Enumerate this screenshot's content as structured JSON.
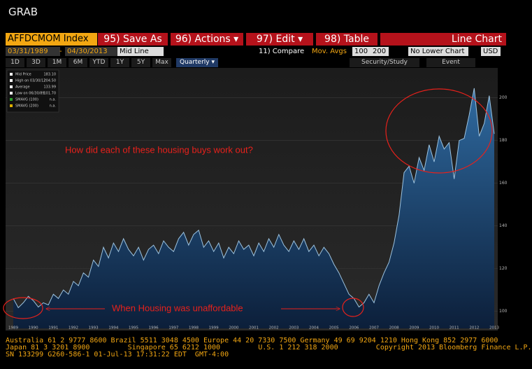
{
  "window": {
    "title": "GRAB"
  },
  "toolbar": {
    "security": "AFFDCMOM Index",
    "menus": [
      "95) Save As",
      "96) Actions ▾",
      "97) Edit ▾",
      "98) Table"
    ],
    "chart_type": "Line Chart",
    "start_date": "03/31/1989",
    "end_date": "04/30/2013",
    "field": "Mid Line",
    "compare": "11) Compare",
    "mov_avgs": "Mov. Avgs",
    "ma_1": "100",
    "ma_2": "200",
    "lower_chart": "No Lower Chart",
    "currency": "USD",
    "periods": [
      "1D",
      "3D",
      "1M",
      "6M",
      "YTD",
      "1Y",
      "5Y",
      "Max"
    ],
    "frequency": "Quarterly ▾",
    "security_study": "Security/Study",
    "event": "Event"
  },
  "legend": [
    {
      "label": "Mid Price",
      "value": "183.10"
    },
    {
      "label": "High on 03/30/12",
      "value": "204.50"
    },
    {
      "label": "Average",
      "value": "133.99"
    },
    {
      "label": "Low on 06/30/89",
      "value": "101.70"
    },
    {
      "label": "SMAVG (100)",
      "value": "n.a."
    },
    {
      "label": "SMAVG (200)",
      "value": "n.a."
    }
  ],
  "chart_data": {
    "type": "area",
    "annotations": [
      "How did each of these housing buys work out?",
      "When Housing was unaffordable"
    ],
    "categories": [
      "1989",
      null,
      null,
      null,
      "1990",
      null,
      null,
      null,
      "1991",
      null,
      null,
      null,
      "1992",
      null,
      null,
      null,
      "1993",
      null,
      null,
      null,
      "1994",
      null,
      null,
      null,
      "1995",
      null,
      null,
      null,
      "1996",
      null,
      null,
      null,
      "1997",
      null,
      null,
      null,
      "1998",
      null,
      null,
      null,
      "1999",
      null,
      null,
      null,
      "2000",
      null,
      null,
      null,
      "2001",
      null,
      null,
      null,
      "2002",
      null,
      null,
      null,
      "2003",
      null,
      null,
      null,
      "2004",
      null,
      null,
      null,
      "2005",
      null,
      null,
      null,
      "2006",
      null,
      null,
      null,
      "2007",
      null,
      null,
      null,
      "2008",
      null,
      null,
      null,
      "2009",
      null,
      null,
      null,
      "2010",
      null,
      null,
      null,
      "2011",
      null,
      null,
      null,
      "2012",
      null,
      null,
      null,
      "2013"
    ],
    "series": [
      {
        "name": "Mid Price",
        "color": "#9cc3e0",
        "values": [
          106,
          101.7,
          104,
          107,
          105,
          102,
          104,
          103,
          108,
          106,
          110,
          108,
          114,
          112,
          118,
          116,
          124,
          121,
          130,
          125,
          132,
          128,
          134,
          129,
          126,
          130,
          124,
          129,
          131,
          127,
          133,
          130,
          128,
          134,
          137,
          131,
          136,
          138,
          130,
          133,
          128,
          132,
          125,
          130,
          127,
          133,
          129,
          131,
          126,
          132,
          128,
          134,
          130,
          136,
          131,
          128,
          133,
          129,
          134,
          128,
          131,
          126,
          130,
          127,
          122,
          118,
          113,
          108,
          106,
          102,
          104,
          108,
          104,
          112,
          118,
          123,
          132,
          145,
          165,
          168,
          160,
          172,
          166,
          178,
          170,
          182,
          176,
          179,
          162,
          180,
          181,
          192,
          204.5,
          182,
          188,
          201,
          183.1
        ]
      }
    ],
    "ylim": [
      92,
      214
    ],
    "yticks": [
      100,
      120,
      140,
      160,
      180,
      200
    ],
    "grid": true
  },
  "footer": [
    "Australia 61 2 9777 8600 Brazil 5511 3048 4500 Europe 44 20 7330 7500 Germany 49 69 9204 1210 Hong Kong 852 2977 6000",
    "Japan 81 3 3201 8900         Singapore 65 6212 1000         U.S. 1 212 318 2000         Copyright 2013 Bloomberg Finance L.P.",
    "SN 133299 G260-586-1 01-Jul-13 17:31:22 EDT  GMT-4:00"
  ]
}
